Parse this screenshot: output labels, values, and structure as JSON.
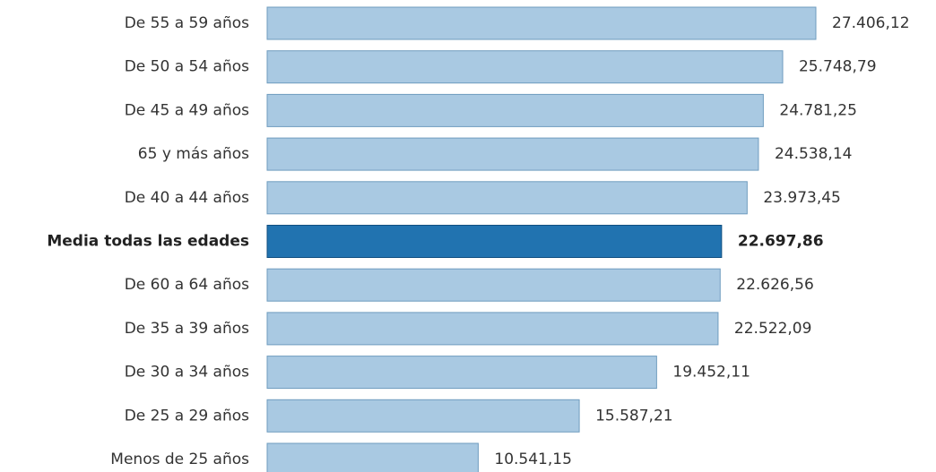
{
  "chart_data": {
    "type": "bar",
    "orientation": "horizontal",
    "title": "",
    "xlabel": "",
    "ylabel": "",
    "xlim": [
      0,
      27406.12
    ],
    "grid": false,
    "categories": [
      "De 55 a 59 años",
      "De 50 a 54 años",
      "De 45 a 49 años",
      "65 y más años",
      "De 40 a 44 años",
      "Media todas las edades",
      "De 60 a 64 años",
      "De 35 a 39 años",
      "De 30 a 34 años",
      "De 25 a 29 años",
      "Menos de 25 años"
    ],
    "values": [
      27406.12,
      25748.79,
      24781.25,
      24538.14,
      23973.45,
      22697.86,
      22626.56,
      22522.09,
      19452.11,
      15587.21,
      10541.15
    ],
    "value_labels": [
      "27.406,12",
      "25.748,79",
      "24.781,25",
      "24.538,14",
      "23.973,45",
      "22.697,86",
      "22.626,56",
      "22.522,09",
      "19.452,11",
      "15.587,21",
      "10.541,15"
    ],
    "highlight_index": 5,
    "colors": {
      "bar": "#a9c9e2",
      "bar_border": "#6f9cbf",
      "highlight_bar": "#2173b0",
      "highlight_border": "#114f80",
      "text": "#333333"
    }
  }
}
